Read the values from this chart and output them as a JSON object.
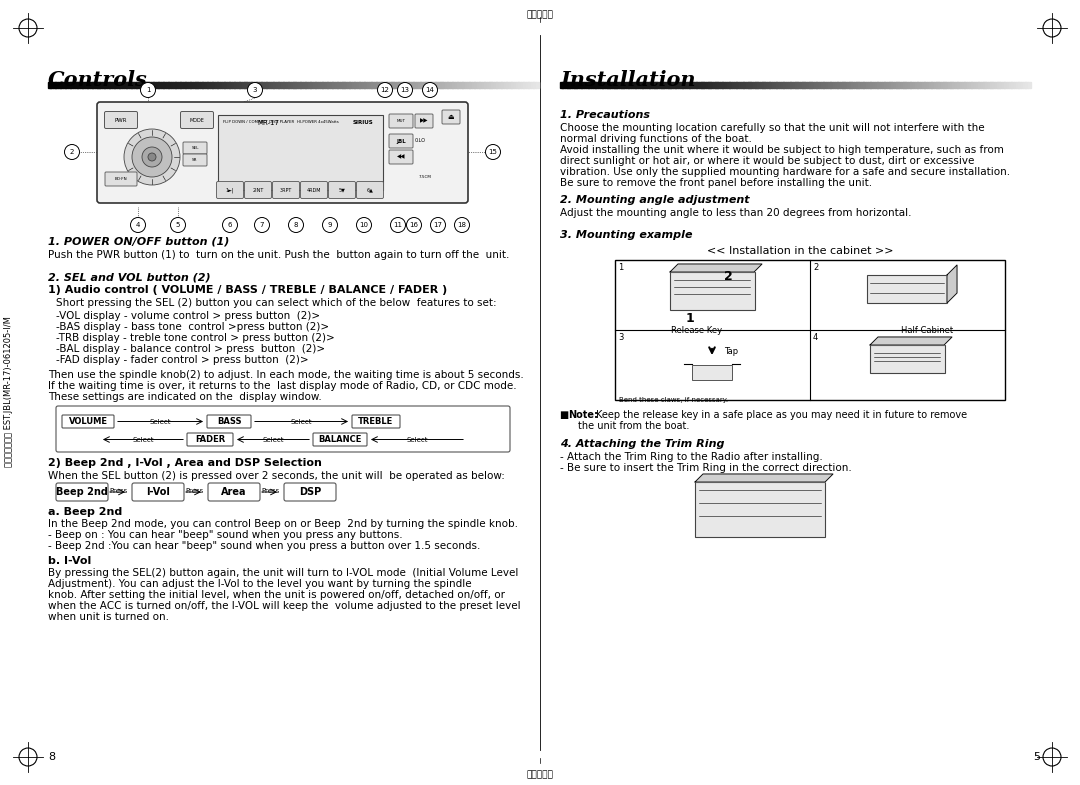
{
  "bg_color": "#ffffff",
  "left_title": "Controls",
  "right_title": "Installation",
  "left_page_num": "8",
  "right_page_num": "5",
  "top_center_text": "对折基准线",
  "bottom_center_text": "对折基准线",
  "left_side_text": "菲林管理编号： EST.JBL(MR-17)-061205-I/M",
  "section1_title": "1. POWER ON/OFF button (1)",
  "section1_body": "Push the PWR button (1) to  turn on the unit. Push the  button again to turn off the  unit.",
  "section2_title": "2. SEL and VOL button (2)",
  "section2_sub": "1) Audio control ( VOLUME / BASS / TREBLE / BALANCE / FADER )",
  "section2_body": "Short pressing the SEL (2) button you can select which of the below  features to set:",
  "section2_list": [
    "-VOL display - volume control > press button  (2)>",
    "-BAS display - bass tone  control >press button (2)>",
    "-TRB display - treble tone control > press button (2)>",
    "-BAL display - balance control > press  button  (2)>",
    "-FAD display - fader control > press button  (2)>"
  ],
  "section2_flow": "Then use the spindle knob(2) to adjust. In each mode, the waiting time is about 5 seconds.\nIf the waiting time is over, it returns to the  last display mode of Radio, CD, or CDC mode.\nThese settings are indicated on the  display window.",
  "section3_title": "2) Beep 2nd , I-Vol , Area and DSP Selection",
  "section3_body": "When the SEL button (2) is pressed over 2 seconds, the unit will  be operated as below:",
  "beep_labels": [
    "Beep 2nd",
    "I-Vol",
    "Area",
    "DSP"
  ],
  "section4a_title": "a. Beep 2nd",
  "section4a_body": "In the Beep 2nd mode, you can control Beep on or Beep  2nd by turning the spindle knob.\n- Beep on : You can hear \"beep\" sound when you press any buttons.\n- Beep 2nd :You can hear \"beep\" sound when you press a button over 1.5 seconds.",
  "section4b_title": "b. I-Vol",
  "section4b_body": "By pressing the SEL(2) button again, the unit will turn to I-VOL mode  (Initial Volume Level\nAdjustment). You can adjust the I-Vol to the level you want by turning the spindle\nknob. After setting the initial level, when the unit is powered on/off, detached on/off, or\nwhen the ACC is turned on/off, the I-VOL will keep the  volume adjusted to the preset level\nwhen unit is turned on.",
  "inst_section1_title": "1. Precautions",
  "inst_section1_body": "Choose the mounting location carefully so that the unit will not interfere with the\nnormal driving functions of the boat.\nAvoid installing the unit where it would be subject to high temperature, such as from\ndirect sunlight or hot air, or where it would be subject to dust, dirt or excessive\nvibration. Use only the supplied mounting hardware for a safe and secure installation.\nBe sure to remove the front panel before installing the unit.",
  "inst_section2_title": "2. Mounting angle adjustment",
  "inst_section2_body": "Adjust the mounting angle to less than 20 degrees from horizontal.",
  "inst_section3_title": "3. Mounting example",
  "inst_cabinet_title": "<< Installation in the cabinet >>",
  "inst_note_bold": "Note:",
  "inst_note_body": " Keep the release key in a safe place as you may need it in future to remove\n   the unit from the boat.",
  "inst_section4_title": "4. Attaching the Trim Ring",
  "inst_section4_body": "- Attach the Trim Ring to the Radio after installing.\n- Be sure to insert the Trim Ring in the correct direction."
}
